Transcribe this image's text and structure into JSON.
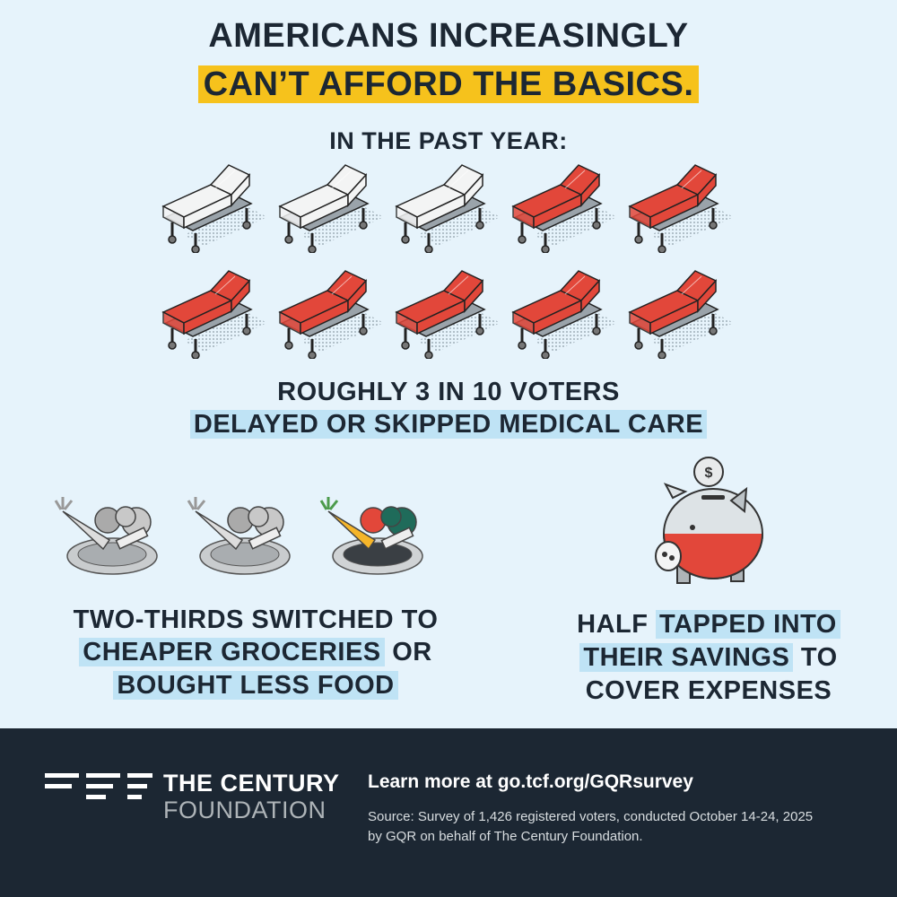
{
  "header": {
    "title_line1": "AMERICANS INCREASINGLY",
    "title_line2": "CAN’T AFFORD THE BASICS.",
    "subtitle": "IN THE PAST YEAR:"
  },
  "medical": {
    "line1": "ROUGHLY 3 IN 10 VOTERS",
    "line2": "DELAYED OR SKIPPED MEDICAL CARE"
  },
  "groceries": {
    "line1": "TWO-THIRDS SWITCHED TO",
    "line2_highlight": "CHEAPER GROCERIES",
    "line2_rest": "OR",
    "line3_highlight": "BOUGHT LESS FOOD"
  },
  "savings": {
    "line1_plain": "HALF",
    "line1_highlight": "TAPPED INTO",
    "line2_highlight": "THEIR SAVINGS",
    "line2_rest": "TO",
    "line3": "COVER EXPENSES"
  },
  "footer": {
    "logo_line1": "THE CENTURY",
    "logo_line2": "FOUNDATION",
    "link": "Learn more at go.tcf.org/GQRsurvey",
    "source_line1": "Source: Survey of 1,426 registered voters, conducted October 14-24, 2025",
    "source_line2": "by GQR on behalf of The Century Foundation."
  }
}
